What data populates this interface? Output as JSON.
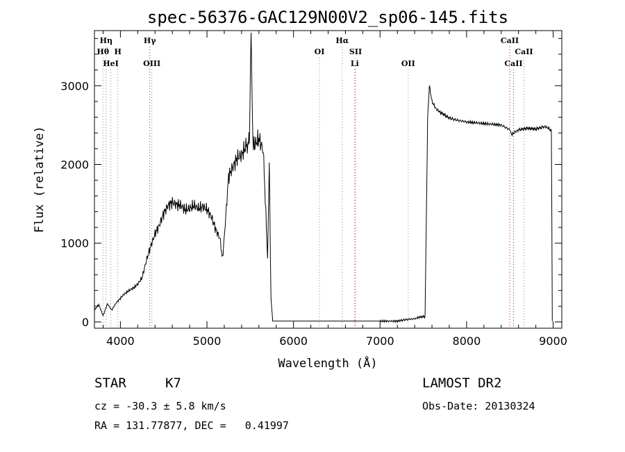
{
  "chart_data": {
    "type": "line",
    "title": "spec-56376-GAC129N00V2_sp06-145.fits",
    "xlabel": "Wavelength (Å)",
    "ylabel": "Flux (relative)",
    "xlim": [
      3700,
      9100
    ],
    "ylim": [
      -80,
      3700
    ],
    "x_ticks": [
      4000,
      5000,
      6000,
      7000,
      8000,
      9000
    ],
    "y_ticks": [
      0,
      1000,
      2000,
      3000
    ],
    "grid": false,
    "series": [
      {
        "x": [
          3700,
          3750,
          3800,
          3850,
          3900,
          3950,
          4000,
          4050,
          4100,
          4150,
          4200,
          4250,
          4300,
          4350,
          4400,
          4450,
          4500,
          4550,
          4600,
          4650,
          4700,
          4750,
          4800,
          4850,
          4900,
          4950,
          5000,
          5050,
          5100,
          5150,
          5180,
          5200,
          5250,
          5300,
          5350,
          5400,
          5450,
          5490,
          5510,
          5530,
          5550,
          5600,
          5650,
          5680,
          5700,
          5720,
          5740,
          5760,
          5800,
          6000,
          6500,
          7000,
          7200,
          7300,
          7400,
          7450,
          7520,
          7550,
          7570,
          7600,
          7650,
          7700,
          7800,
          7900,
          8000,
          8200,
          8400,
          8500,
          8520,
          8600,
          8700,
          8800,
          8900,
          8950,
          8980,
          8990
        ],
        "y": [
          150,
          220,
          80,
          230,
          150,
          240,
          300,
          360,
          400,
          430,
          480,
          560,
          780,
          960,
          1120,
          1230,
          1380,
          1480,
          1520,
          1490,
          1480,
          1420,
          1440,
          1480,
          1440,
          1460,
          1430,
          1340,
          1180,
          1060,
          800,
          1070,
          1850,
          1970,
          2080,
          2120,
          2230,
          2290,
          3700,
          2290,
          2240,
          2330,
          2180,
          1400,
          800,
          2000,
          300,
          10,
          10,
          10,
          10,
          10,
          10,
          30,
          40,
          60,
          70,
          2600,
          3000,
          2800,
          2700,
          2660,
          2590,
          2560,
          2540,
          2520,
          2500,
          2440,
          2380,
          2440,
          2460,
          2450,
          2480,
          2460,
          2420,
          10
        ]
      }
    ],
    "lines": [
      {
        "label": "Hη",
        "x": 3835,
        "row": 0,
        "color": "#888888"
      },
      {
        "label": "Hθ",
        "x": 3798,
        "row": 1,
        "color": "#888888"
      },
      {
        "label": "H",
        "x": 3970,
        "row": 1,
        "color": "#888888"
      },
      {
        "label": "HeI",
        "x": 3889,
        "row": 2,
        "color": "#888888"
      },
      {
        "label": "Hγ",
        "x": 4340,
        "row": 0,
        "color": "#dd0000"
      },
      {
        "label": "OIII",
        "x": 4363,
        "row": 2,
        "color": "#888888"
      },
      {
        "label": "OI",
        "x": 6300,
        "row": 1,
        "color": "#888888"
      },
      {
        "label": "Hα",
        "x": 6563,
        "row": 0,
        "color": "#888888"
      },
      {
        "label": "SII",
        "x": 6717,
        "row": 1,
        "color": "#888888"
      },
      {
        "label": "Li",
        "x": 6708,
        "row": 2,
        "color": "#dd0000"
      },
      {
        "label": "OII",
        "x": 7325,
        "row": 2,
        "color": "#888888"
      },
      {
        "label": "CaII",
        "x": 8498,
        "row": 0,
        "color": "#dd0000"
      },
      {
        "label": "CaII",
        "x": 8662,
        "row": 1,
        "color": "#888888"
      },
      {
        "label": "CaII",
        "x": 8542,
        "row": 2,
        "color": "#dd0000"
      }
    ]
  },
  "info": {
    "class_label": "STAR",
    "subclass": "K7",
    "survey": "LAMOST DR2",
    "cz": "cz = -30.3 ± 5.8 km/s",
    "obs_date": "Obs-Date: 20130324",
    "coords": "RA = 131.77877, DEC =   0.41997"
  }
}
